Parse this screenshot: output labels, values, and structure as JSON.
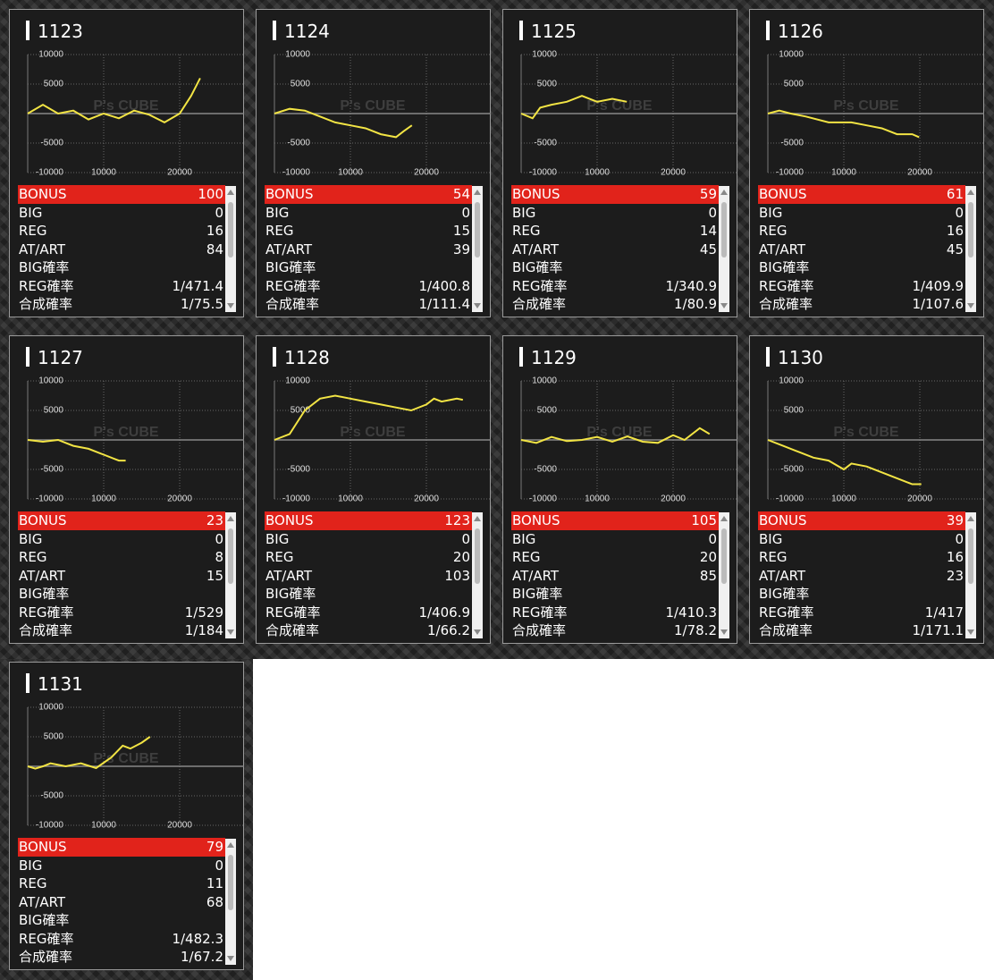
{
  "watermark": "P's CUBE",
  "panels": [
    {
      "machine": "1123",
      "chart": {
        "type": "line",
        "color": "#f2e444",
        "xlim": [
          0,
          28000
        ],
        "ylim": [
          -10000,
          10000
        ],
        "xticks": [
          10000,
          20000
        ],
        "yticks": [
          10000,
          5000,
          -5000,
          -10000
        ],
        "x": [
          0,
          2000,
          4000,
          6000,
          8000,
          10000,
          12000,
          14000,
          16000,
          18000,
          20000,
          21500,
          22700
        ],
        "values": [
          0,
          1500,
          0,
          500,
          -1000,
          0,
          -800,
          500,
          -200,
          -1500,
          0,
          3000,
          6000
        ]
      },
      "rows": [
        {
          "label": "BONUS",
          "value": 100
        },
        {
          "label": "BIG",
          "value": 0
        },
        {
          "label": "REG",
          "value": 16
        },
        {
          "label": "AT/ART",
          "value": 84
        },
        {
          "label": "BIG確率"
        },
        {
          "label": "REG確率",
          "value": "1/471.4"
        },
        {
          "label": "合成確率",
          "value": "1/75.5"
        }
      ]
    },
    {
      "machine": "1124",
      "chart": {
        "type": "line",
        "color": "#f2e444",
        "xlim": [
          0,
          28000
        ],
        "ylim": [
          -10000,
          10000
        ],
        "xticks": [
          10000,
          20000
        ],
        "yticks": [
          10000,
          5000,
          -5000,
          -10000
        ],
        "x": [
          0,
          2000,
          4000,
          6000,
          8000,
          10000,
          12000,
          14000,
          16000,
          17000,
          18100
        ],
        "values": [
          0,
          800,
          500,
          -500,
          -1500,
          -2000,
          -2500,
          -3500,
          -4000,
          -3000,
          -2000
        ]
      },
      "rows": [
        {
          "label": "BONUS",
          "value": 54
        },
        {
          "label": "BIG",
          "value": 0
        },
        {
          "label": "REG",
          "value": 15
        },
        {
          "label": "AT/ART",
          "value": 39
        },
        {
          "label": "BIG確率"
        },
        {
          "label": "REG確率",
          "value": "1/400.8"
        },
        {
          "label": "合成確率",
          "value": "1/111.4"
        }
      ]
    },
    {
      "machine": "1125",
      "chart": {
        "type": "line",
        "color": "#f2e444",
        "xlim": [
          0,
          28000
        ],
        "ylim": [
          -10000,
          10000
        ],
        "xticks": [
          10000,
          20000
        ],
        "yticks": [
          10000,
          5000,
          -5000,
          -10000
        ],
        "x": [
          0,
          1500,
          2500,
          4000,
          6000,
          8000,
          10000,
          12000,
          13900
        ],
        "values": [
          0,
          -800,
          1000,
          1500,
          2000,
          3000,
          2000,
          2500,
          2000
        ]
      },
      "rows": [
        {
          "label": "BONUS",
          "value": 59
        },
        {
          "label": "BIG",
          "value": 0
        },
        {
          "label": "REG",
          "value": 14
        },
        {
          "label": "AT/ART",
          "value": 45
        },
        {
          "label": "BIG確率"
        },
        {
          "label": "REG確率",
          "value": "1/340.9"
        },
        {
          "label": "合成確率",
          "value": "1/80.9"
        }
      ]
    },
    {
      "machine": "1126",
      "chart": {
        "type": "line",
        "color": "#f2e444",
        "xlim": [
          0,
          28000
        ],
        "ylim": [
          -10000,
          10000
        ],
        "xticks": [
          10000,
          20000
        ],
        "yticks": [
          10000,
          5000,
          -5000,
          -10000
        ],
        "x": [
          0,
          1500,
          3000,
          5000,
          8000,
          11000,
          13000,
          15000,
          17000,
          19000,
          19900
        ],
        "values": [
          0,
          500,
          0,
          -500,
          -1500,
          -1500,
          -2000,
          -2500,
          -3500,
          -3500,
          -4000
        ]
      },
      "rows": [
        {
          "label": "BONUS",
          "value": 61
        },
        {
          "label": "BIG",
          "value": 0
        },
        {
          "label": "REG",
          "value": 16
        },
        {
          "label": "AT/ART",
          "value": 45
        },
        {
          "label": "BIG確率"
        },
        {
          "label": "REG確率",
          "value": "1/409.9"
        },
        {
          "label": "合成確率",
          "value": "1/107.6"
        }
      ]
    },
    {
      "machine": "1127",
      "chart": {
        "type": "line",
        "color": "#f2e444",
        "xlim": [
          0,
          28000
        ],
        "ylim": [
          -10000,
          10000
        ],
        "xticks": [
          10000,
          20000
        ],
        "yticks": [
          10000,
          5000,
          -5000,
          -10000
        ],
        "x": [
          0,
          2000,
          4000,
          6000,
          8000,
          10000,
          12000,
          12900
        ],
        "values": [
          0,
          -300,
          0,
          -1000,
          -1500,
          -2500,
          -3500,
          -3500
        ]
      },
      "rows": [
        {
          "label": "BONUS",
          "value": 23
        },
        {
          "label": "BIG",
          "value": 0
        },
        {
          "label": "REG",
          "value": 8
        },
        {
          "label": "AT/ART",
          "value": 15
        },
        {
          "label": "BIG確率"
        },
        {
          "label": "REG確率",
          "value": "1/529"
        },
        {
          "label": "合成確率",
          "value": "1/184"
        }
      ]
    },
    {
      "machine": "1128",
      "chart": {
        "type": "line",
        "color": "#f2e444",
        "xlim": [
          0,
          28000
        ],
        "ylim": [
          -10000,
          10000
        ],
        "xticks": [
          10000,
          20000
        ],
        "yticks": [
          10000,
          5000,
          -5000,
          -10000
        ],
        "x": [
          0,
          2000,
          4000,
          6000,
          8000,
          10000,
          12000,
          14000,
          16000,
          18000,
          20000,
          21000,
          22000,
          24000,
          24800
        ],
        "values": [
          0,
          1000,
          5000,
          7000,
          7500,
          7000,
          6500,
          6000,
          5500,
          5000,
          6000,
          7000,
          6500,
          7000,
          6800
        ]
      },
      "rows": [
        {
          "label": "BONUS",
          "value": 123
        },
        {
          "label": "BIG",
          "value": 0
        },
        {
          "label": "REG",
          "value": 20
        },
        {
          "label": "AT/ART",
          "value": 103
        },
        {
          "label": "BIG確率"
        },
        {
          "label": "REG確率",
          "value": "1/406.9"
        },
        {
          "label": "合成確率",
          "value": "1/66.2"
        }
      ]
    },
    {
      "machine": "1129",
      "chart": {
        "type": "line",
        "color": "#f2e444",
        "xlim": [
          0,
          28000
        ],
        "ylim": [
          -10000,
          10000
        ],
        "xticks": [
          10000,
          20000
        ],
        "yticks": [
          10000,
          5000,
          -5000,
          -10000
        ],
        "x": [
          0,
          2000,
          4000,
          6000,
          8000,
          10000,
          12000,
          14000,
          16000,
          18000,
          20000,
          21500,
          23500,
          24800
        ],
        "values": [
          0,
          -500,
          500,
          -200,
          0,
          500,
          -300,
          600,
          -300,
          -500,
          800,
          0,
          2000,
          1000
        ]
      },
      "rows": [
        {
          "label": "BONUS",
          "value": 105
        },
        {
          "label": "BIG",
          "value": 0
        },
        {
          "label": "REG",
          "value": 20
        },
        {
          "label": "AT/ART",
          "value": 85
        },
        {
          "label": "BIG確率"
        },
        {
          "label": "REG確率",
          "value": "1/410.3"
        },
        {
          "label": "合成確率",
          "value": "1/78.2"
        }
      ]
    },
    {
      "machine": "1130",
      "chart": {
        "type": "line",
        "color": "#f2e444",
        "xlim": [
          0,
          28000
        ],
        "ylim": [
          -10000,
          10000
        ],
        "xticks": [
          10000,
          20000
        ],
        "yticks": [
          10000,
          5000,
          -5000,
          -10000
        ],
        "x": [
          0,
          2000,
          4000,
          6000,
          8000,
          10000,
          11000,
          13000,
          15000,
          17000,
          19000,
          20200
        ],
        "values": [
          0,
          -1000,
          -2000,
          -3000,
          -3500,
          -5000,
          -4000,
          -4500,
          -5500,
          -6500,
          -7500,
          -7500
        ]
      },
      "rows": [
        {
          "label": "BONUS",
          "value": 39
        },
        {
          "label": "BIG",
          "value": 0
        },
        {
          "label": "REG",
          "value": 16
        },
        {
          "label": "AT/ART",
          "value": 23
        },
        {
          "label": "BIG確率"
        },
        {
          "label": "REG確率",
          "value": "1/417"
        },
        {
          "label": "合成確率",
          "value": "1/171.1"
        }
      ]
    },
    {
      "machine": "1131",
      "chart": {
        "type": "line",
        "color": "#f2e444",
        "xlim": [
          0,
          28000
        ],
        "ylim": [
          -10000,
          10000
        ],
        "xticks": [
          10000,
          20000
        ],
        "yticks": [
          10000,
          5000,
          -5000,
          -10000
        ],
        "x": [
          0,
          1000,
          2000,
          3000,
          5000,
          7000,
          9000,
          11000,
          12500,
          13500,
          15000,
          16100
        ],
        "values": [
          0,
          -400,
          0,
          500,
          0,
          500,
          -300,
          1500,
          3500,
          3000,
          4000,
          5000
        ]
      },
      "rows": [
        {
          "label": "BONUS",
          "value": 79
        },
        {
          "label": "BIG",
          "value": 0
        },
        {
          "label": "REG",
          "value": 11
        },
        {
          "label": "AT/ART",
          "value": 68
        },
        {
          "label": "BIG確率"
        },
        {
          "label": "REG確率",
          "value": "1/482.3"
        },
        {
          "label": "合成確率",
          "value": "1/67.2"
        }
      ]
    }
  ]
}
